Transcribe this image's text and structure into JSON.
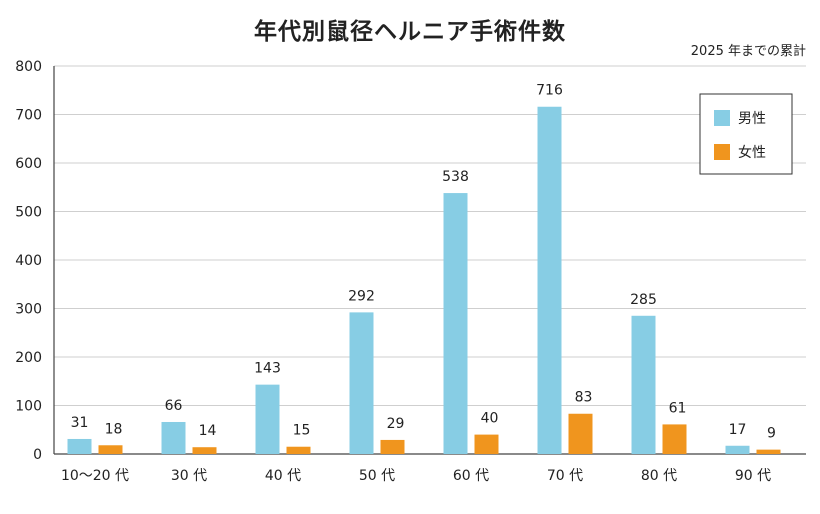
{
  "chart_data": {
    "type": "bar",
    "title": "年代別鼠径ヘルニア手術件数",
    "subtitle": "2025 年までの累計",
    "categories": [
      "10～20 代",
      "30 代",
      "40 代",
      "50 代",
      "60 代",
      "70 代",
      "80 代",
      "90 代"
    ],
    "series": [
      {
        "name": "男性",
        "color": "#87cde4",
        "values": [
          31,
          66,
          143,
          292,
          538,
          716,
          285,
          17
        ]
      },
      {
        "name": "女性",
        "color": "#f0951e",
        "values": [
          18,
          14,
          15,
          29,
          40,
          83,
          61,
          9
        ]
      }
    ],
    "yticks": [
      0,
      100,
      200,
      300,
      400,
      500,
      600,
      700,
      800
    ],
    "ylim": [
      0,
      800
    ],
    "grid": true,
    "legend_position": "top-right",
    "xlabel": "",
    "ylabel": ""
  }
}
